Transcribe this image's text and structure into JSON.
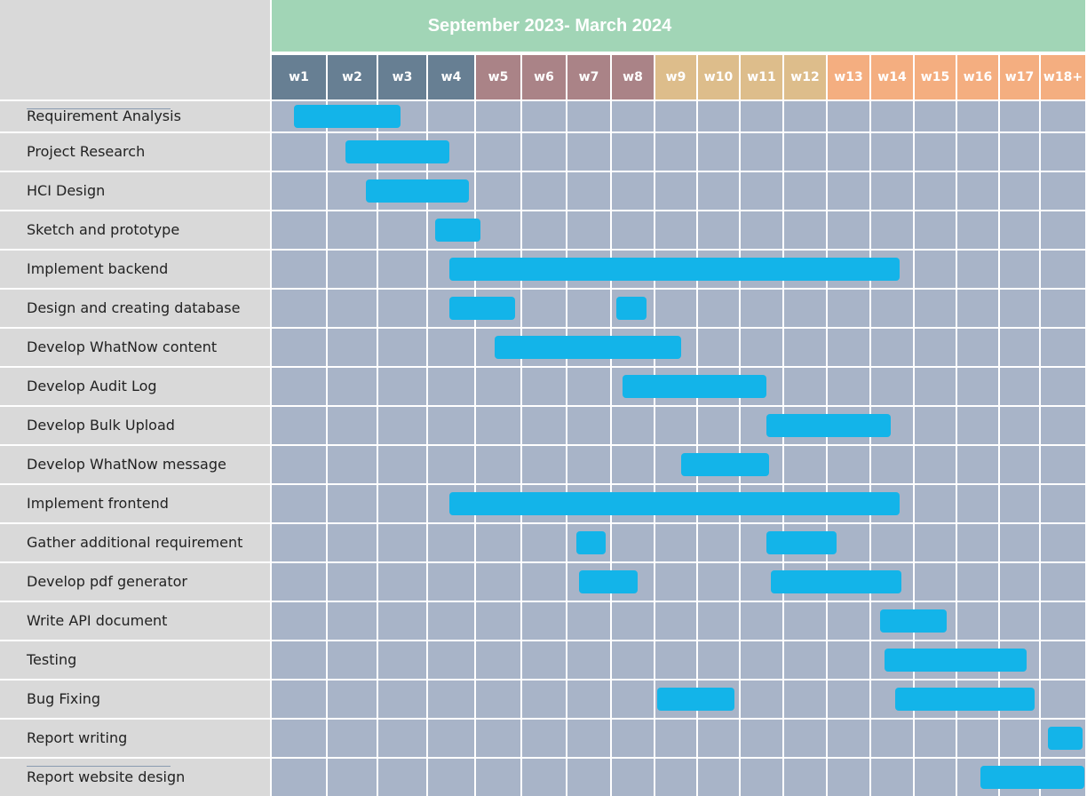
{
  "chart_data": {
    "type": "gantt",
    "title": "September 2023- March 2024",
    "weeks": [
      "w1",
      "w2",
      "w3",
      "w4",
      "w5",
      "w6",
      "w7",
      "w8",
      "w9",
      "w10",
      "w11",
      "w12",
      "w13",
      "w14",
      "w15",
      "w16",
      "w17",
      "w18+"
    ],
    "week_groups": [
      {
        "weeks": [
          "w1",
          "w2",
          "w3",
          "w4"
        ],
        "color": "#677f93"
      },
      {
        "weeks": [
          "w5",
          "w6",
          "w7",
          "w8"
        ],
        "color": "#aa8387"
      },
      {
        "weeks": [
          "w9",
          "w10",
          "w11",
          "w12"
        ],
        "color": "#ddbd8b"
      },
      {
        "weeks": [
          "w13",
          "w14",
          "w15",
          "w16",
          "w17",
          "w18+"
        ],
        "color": "#f4ae80"
      }
    ],
    "tasks": [
      {
        "name": "Requirement Analysis",
        "bars": [
          [
            0.4,
            2.45
          ]
        ]
      },
      {
        "name": "Project Research",
        "bars": [
          [
            1.35,
            3.45
          ]
        ]
      },
      {
        "name": "HCI Design",
        "bars": [
          [
            1.75,
            3.85
          ]
        ]
      },
      {
        "name": "Sketch and prototype",
        "bars": [
          [
            3.15,
            4.1
          ]
        ]
      },
      {
        "name": "Implement backend",
        "bars": [
          [
            3.45,
            13.65
          ]
        ]
      },
      {
        "name": "Design and creating database",
        "bars": [
          [
            3.45,
            4.85
          ],
          [
            7.1,
            7.8
          ]
        ]
      },
      {
        "name": "Develop WhatNow content",
        "bars": [
          [
            4.4,
            8.6
          ]
        ]
      },
      {
        "name": "Develop Audit Log",
        "bars": [
          [
            7.25,
            10.6
          ]
        ]
      },
      {
        "name": "Develop Bulk Upload",
        "bars": [
          [
            10.6,
            13.45
          ]
        ]
      },
      {
        "name": "Develop WhatNow message",
        "bars": [
          [
            8.6,
            10.65
          ]
        ]
      },
      {
        "name": "Implement frontend",
        "bars": [
          [
            3.45,
            13.65
          ]
        ]
      },
      {
        "name": "Gather additional requirement",
        "bars": [
          [
            6.2,
            6.85
          ],
          [
            10.6,
            12.2
          ]
        ]
      },
      {
        "name": "Develop pdf generator",
        "bars": [
          [
            6.25,
            7.6
          ],
          [
            10.7,
            13.7
          ]
        ]
      },
      {
        "name": "Write API document",
        "bars": [
          [
            13.2,
            14.75
          ]
        ]
      },
      {
        "name": "Testing",
        "bars": [
          [
            13.3,
            16.65
          ]
        ]
      },
      {
        "name": "Bug Fixing",
        "bars": [
          [
            8.05,
            9.85
          ],
          [
            13.55,
            16.85
          ]
        ]
      },
      {
        "name": "Report writing",
        "bars": [
          [
            17.15,
            17.9
          ]
        ]
      },
      {
        "name": "Report website design",
        "bars": [
          [
            15.55,
            17.95
          ]
        ]
      }
    ],
    "bar_color": "#13b4e9",
    "cell_color": "#a8b4c8",
    "label_bg_color": "#d9d9d9",
    "title_bg_color": "#a1d5b6"
  }
}
